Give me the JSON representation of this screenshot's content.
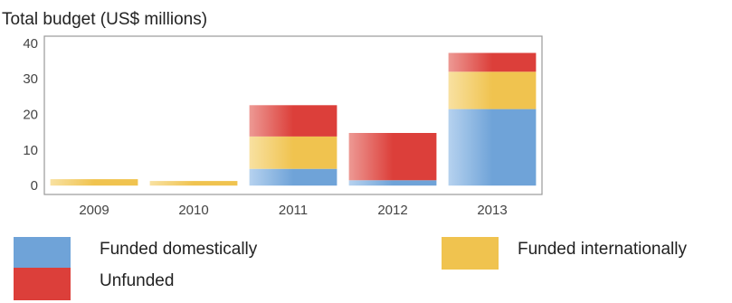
{
  "chart_data": {
    "type": "bar",
    "stacked": true,
    "title": "Total budget (US$ millions)",
    "xlabel": "",
    "ylabel": "",
    "categories": [
      "2009",
      "2010",
      "2011",
      "2012",
      "2013"
    ],
    "ylim": [
      -2.5,
      42
    ],
    "yticks": [
      0,
      10,
      20,
      30,
      40
    ],
    "grid": false,
    "legend_position": "bottom",
    "series": [
      {
        "name": "Funded domestically",
        "color": "#6fa3d8",
        "values": [
          0,
          0,
          4.7,
          1.5,
          21.5
        ]
      },
      {
        "name": "Funded internationally",
        "color": "#f0c34f",
        "values": [
          1.8,
          1.3,
          9.1,
          0,
          10.5
        ]
      },
      {
        "name": "Unfunded",
        "color": "#dc3f3a",
        "values": [
          0,
          0,
          8.8,
          13.3,
          5.3
        ]
      }
    ]
  }
}
